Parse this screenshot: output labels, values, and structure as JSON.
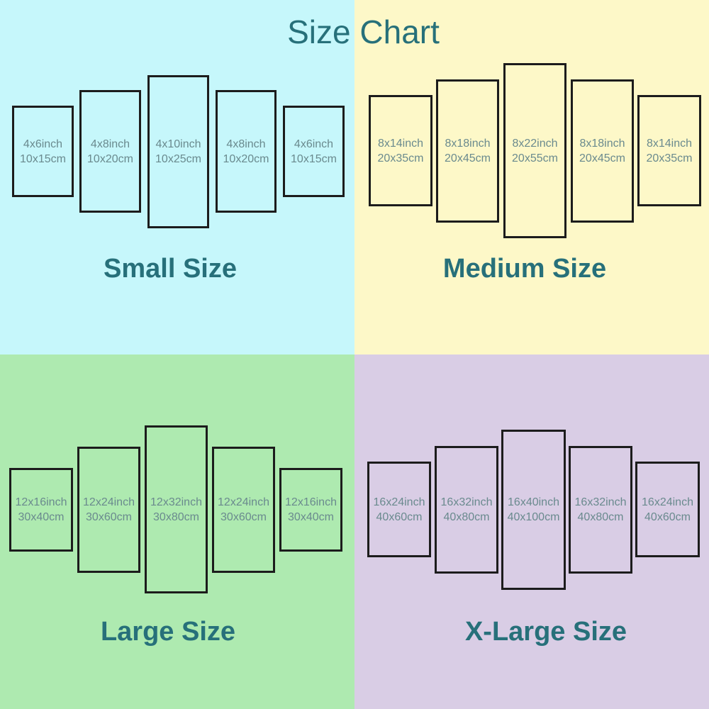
{
  "title": "Size Chart",
  "colors": {
    "small_bg": "#c6f7fb",
    "medium_bg": "#fdf8c8",
    "large_bg": "#aeeab0",
    "xlarge_bg": "#d9cde5",
    "heading": "#27707a",
    "panel_text": "#6a8a8e",
    "panel_border": "#1c1c1c"
  },
  "groups": [
    {
      "label": "Small Size",
      "panels": [
        {
          "inch": "4x6inch",
          "cm": "10x15cm"
        },
        {
          "inch": "4x8inch",
          "cm": "10x20cm"
        },
        {
          "inch": "4x10inch",
          "cm": "10x25cm"
        },
        {
          "inch": "4x8inch",
          "cm": "10x20cm"
        },
        {
          "inch": "4x6inch",
          "cm": "10x15cm"
        }
      ]
    },
    {
      "label": "Medium Size",
      "panels": [
        {
          "inch": "8x14inch",
          "cm": "20x35cm"
        },
        {
          "inch": "8x18inch",
          "cm": "20x45cm"
        },
        {
          "inch": "8x22inch",
          "cm": "20x55cm"
        },
        {
          "inch": "8x18inch",
          "cm": "20x45cm"
        },
        {
          "inch": "8x14inch",
          "cm": "20x35cm"
        }
      ]
    },
    {
      "label": "Large Size",
      "panels": [
        {
          "inch": "12x16inch",
          "cm": "30x40cm"
        },
        {
          "inch": "12x24inch",
          "cm": "30x60cm"
        },
        {
          "inch": "12x32inch",
          "cm": "30x80cm"
        },
        {
          "inch": "12x24inch",
          "cm": "30x60cm"
        },
        {
          "inch": "12x16inch",
          "cm": "30x40cm"
        }
      ]
    },
    {
      "label": "X-Large Size",
      "panels": [
        {
          "inch": "16x24inch",
          "cm": "40x60cm"
        },
        {
          "inch": "16x32inch",
          "cm": "40x80cm"
        },
        {
          "inch": "16x40inch",
          "cm": "40x100cm"
        },
        {
          "inch": "16x32inch",
          "cm": "40x80cm"
        },
        {
          "inch": "16x24inch",
          "cm": "40x60cm"
        }
      ]
    }
  ]
}
